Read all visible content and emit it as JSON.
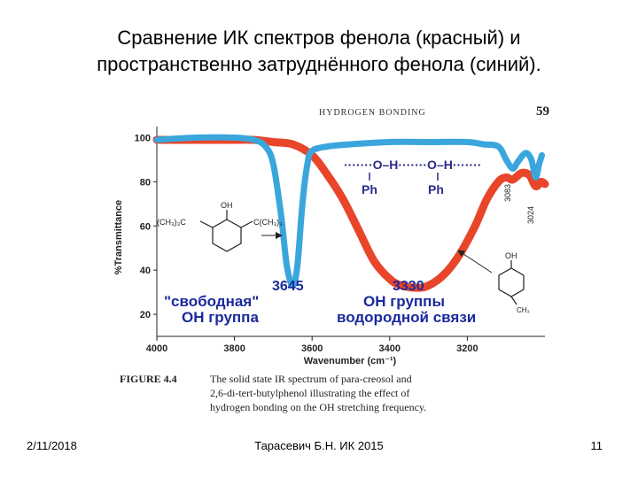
{
  "slide": {
    "title_line1": "Сравнение ИК спектров фенола (красный) и",
    "title_line2": "пространственно затруднённого фенола (синий).",
    "footer_date": "2/11/2018",
    "footer_center": "Тарасевич Б.Н. ИК 2015",
    "footer_page": "11"
  },
  "figure": {
    "header_text": "HYDROGEN BONDING",
    "page_number": "59",
    "caption_label": "FIGURE 4.4",
    "caption_line1": "The solid state IR spectrum of para-creosol and",
    "caption_line2": "2,6-di-tert-butylphenol illustrating the effect of",
    "caption_line3": "hydrogen bonding on the OH stretching frequency.",
    "hbond_chain_top": "·······O–H·······O–H·······",
    "hbond_ph1": "Ph",
    "hbond_ph2": "Ph",
    "hindered_oh": "OH",
    "hindered_left": "(CH₃)₃C",
    "hindered_right": "C(CH₃)₃",
    "cresol_oh": "OH",
    "cresol_ch3": "CH₃",
    "peak_3083": "3083",
    "peak_3024": "3024",
    "annot_free_num": "3645",
    "annot_free_line1": "\"свободная\"",
    "annot_free_line2": "ОН группа",
    "annot_hb_num": "3330",
    "annot_hb_line1": "ОН группы",
    "annot_hb_line2": "водородной связи"
  },
  "colors": {
    "red_series": "#e8452a",
    "blue_series": "#3aa6dc",
    "annotation": "#1a2a9c"
  },
  "chart_data": {
    "type": "line",
    "xlabel": "Wavenumber (cm⁻¹)",
    "ylabel": "%Transmittance",
    "xlim": [
      4000,
      3000
    ],
    "ylim": [
      10,
      105
    ],
    "x_ticks": [
      4000,
      3800,
      3600,
      3400,
      3200
    ],
    "y_ticks": [
      100,
      80,
      60,
      40,
      20
    ],
    "grid": false,
    "series": [
      {
        "name": "blue",
        "points": [
          [
            4000,
            99
          ],
          [
            3900,
            100
          ],
          [
            3800,
            100
          ],
          [
            3750,
            99
          ],
          [
            3720,
            96
          ],
          [
            3700,
            88
          ],
          [
            3680,
            65
          ],
          [
            3665,
            42
          ],
          [
            3650,
            33
          ],
          [
            3638,
            42
          ],
          [
            3625,
            70
          ],
          [
            3612,
            88
          ],
          [
            3600,
            94
          ],
          [
            3560,
            96
          ],
          [
            3500,
            97
          ],
          [
            3400,
            98
          ],
          [
            3300,
            98
          ],
          [
            3200,
            98
          ],
          [
            3160,
            97
          ],
          [
            3120,
            96
          ],
          [
            3100,
            90
          ],
          [
            3083,
            86
          ],
          [
            3070,
            89
          ],
          [
            3050,
            93
          ],
          [
            3035,
            90
          ],
          [
            3024,
            82
          ],
          [
            3015,
            88
          ],
          [
            3008,
            92
          ]
        ]
      },
      {
        "name": "red",
        "points": [
          [
            4000,
            99
          ],
          [
            3900,
            99
          ],
          [
            3800,
            99
          ],
          [
            3750,
            99
          ],
          [
            3700,
            98
          ],
          [
            3650,
            97
          ],
          [
            3600,
            92
          ],
          [
            3560,
            83
          ],
          [
            3520,
            72
          ],
          [
            3480,
            58
          ],
          [
            3440,
            44
          ],
          [
            3400,
            36
          ],
          [
            3370,
            33
          ],
          [
            3330,
            32
          ],
          [
            3300,
            33
          ],
          [
            3260,
            38
          ],
          [
            3220,
            47
          ],
          [
            3180,
            60
          ],
          [
            3150,
            72
          ],
          [
            3120,
            80
          ],
          [
            3100,
            82
          ],
          [
            3083,
            81
          ],
          [
            3060,
            84
          ],
          [
            3040,
            83
          ],
          [
            3024,
            78
          ],
          [
            3010,
            80
          ],
          [
            3000,
            79
          ]
        ]
      }
    ]
  }
}
